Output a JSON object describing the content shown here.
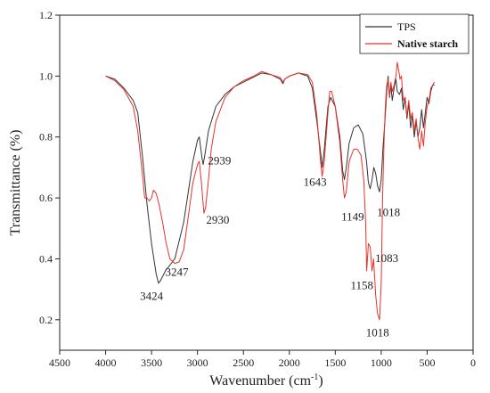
{
  "chart_data": {
    "type": "line",
    "title": "",
    "xlabel": "Wavenumber (cm",
    "xlabel_sup": "-1",
    "xlabel_close": ")",
    "ylabel": "Transmittance (%)",
    "xlim": [
      4500,
      0
    ],
    "ylim": [
      0.1,
      1.2
    ],
    "x_ticks": [
      4500,
      4000,
      3500,
      3000,
      2500,
      2000,
      1500,
      1000,
      500,
      0
    ],
    "y_ticks": [
      0.2,
      0.4,
      0.6,
      0.8,
      1.0,
      1.2
    ],
    "y_tick_labels": [
      "0.2",
      "0.4",
      "0.6",
      "0.8",
      "1.0",
      "1.2"
    ],
    "legend_position": "top-right",
    "series": [
      {
        "name": "TPS",
        "color": "#333333",
        "points": [
          [
            4000,
            1.0
          ],
          [
            3900,
            0.99
          ],
          [
            3800,
            0.96
          ],
          [
            3700,
            0.92
          ],
          [
            3650,
            0.88
          ],
          [
            3600,
            0.74
          ],
          [
            3550,
            0.58
          ],
          [
            3500,
            0.45
          ],
          [
            3450,
            0.35
          ],
          [
            3424,
            0.32
          ],
          [
            3400,
            0.33
          ],
          [
            3350,
            0.36
          ],
          [
            3247,
            0.4
          ],
          [
            3150,
            0.52
          ],
          [
            3050,
            0.72
          ],
          [
            3000,
            0.79
          ],
          [
            2980,
            0.8
          ],
          [
            2950,
            0.73
          ],
          [
            2939,
            0.71
          ],
          [
            2920,
            0.74
          ],
          [
            2880,
            0.82
          ],
          [
            2800,
            0.9
          ],
          [
            2700,
            0.94
          ],
          [
            2600,
            0.965
          ],
          [
            2500,
            0.98
          ],
          [
            2400,
            0.995
          ],
          [
            2300,
            1.01
          ],
          [
            2200,
            1.005
          ],
          [
            2100,
            0.99
          ],
          [
            2070,
            0.975
          ],
          [
            2050,
            0.99
          ],
          [
            2000,
            1.0
          ],
          [
            1900,
            1.01
          ],
          [
            1800,
            1.0
          ],
          [
            1750,
            0.96
          ],
          [
            1700,
            0.85
          ],
          [
            1660,
            0.75
          ],
          [
            1643,
            0.7
          ],
          [
            1620,
            0.76
          ],
          [
            1580,
            0.9
          ],
          [
            1550,
            0.93
          ],
          [
            1500,
            0.9
          ],
          [
            1450,
            0.8
          ],
          [
            1420,
            0.69
          ],
          [
            1400,
            0.66
          ],
          [
            1380,
            0.7
          ],
          [
            1349,
            0.78
          ],
          [
            1300,
            0.83
          ],
          [
            1250,
            0.84
          ],
          [
            1200,
            0.81
          ],
          [
            1160,
            0.72
          ],
          [
            1140,
            0.65
          ],
          [
            1120,
            0.63
          ],
          [
            1100,
            0.66
          ],
          [
            1080,
            0.7
          ],
          [
            1060,
            0.68
          ],
          [
            1040,
            0.64
          ],
          [
            1018,
            0.62
          ],
          [
            1000,
            0.66
          ],
          [
            980,
            0.77
          ],
          [
            960,
            0.85
          ],
          [
            940,
            0.95
          ],
          [
            925,
            1.0
          ],
          [
            910,
            0.93
          ],
          [
            895,
            0.97
          ],
          [
            880,
            0.92
          ],
          [
            860,
            0.96
          ],
          [
            840,
            0.99
          ],
          [
            825,
            0.95
          ],
          [
            800,
            0.94
          ],
          [
            780,
            0.96
          ],
          [
            760,
            0.89
          ],
          [
            740,
            0.93
          ],
          [
            720,
            0.86
          ],
          [
            700,
            0.91
          ],
          [
            680,
            0.83
          ],
          [
            660,
            0.87
          ],
          [
            640,
            0.8
          ],
          [
            620,
            0.85
          ],
          [
            600,
            0.8
          ],
          [
            580,
            0.83
          ],
          [
            560,
            0.89
          ],
          [
            540,
            0.83
          ],
          [
            520,
            0.88
          ],
          [
            500,
            0.93
          ],
          [
            480,
            0.91
          ],
          [
            460,
            0.95
          ],
          [
            440,
            0.97
          ],
          [
            420,
            0.97
          ]
        ]
      },
      {
        "name": "Native starch",
        "color": "#e8332a",
        "points": [
          [
            4000,
            1.0
          ],
          [
            3900,
            0.985
          ],
          [
            3800,
            0.955
          ],
          [
            3700,
            0.9
          ],
          [
            3650,
            0.82
          ],
          [
            3600,
            0.68
          ],
          [
            3575,
            0.6
          ],
          [
            3550,
            0.6
          ],
          [
            3525,
            0.59
          ],
          [
            3500,
            0.6
          ],
          [
            3480,
            0.625
          ],
          [
            3450,
            0.615
          ],
          [
            3420,
            0.58
          ],
          [
            3380,
            0.52
          ],
          [
            3340,
            0.45
          ],
          [
            3300,
            0.4
          ],
          [
            3247,
            0.385
          ],
          [
            3200,
            0.39
          ],
          [
            3150,
            0.43
          ],
          [
            3100,
            0.54
          ],
          [
            3050,
            0.65
          ],
          [
            3000,
            0.71
          ],
          [
            2980,
            0.72
          ],
          [
            2960,
            0.66
          ],
          [
            2930,
            0.55
          ],
          [
            2910,
            0.57
          ],
          [
            2880,
            0.66
          ],
          [
            2850,
            0.76
          ],
          [
            2800,
            0.85
          ],
          [
            2700,
            0.93
          ],
          [
            2600,
            0.965
          ],
          [
            2500,
            0.985
          ],
          [
            2400,
            0.998
          ],
          [
            2300,
            1.015
          ],
          [
            2200,
            1.005
          ],
          [
            2100,
            0.995
          ],
          [
            2070,
            0.98
          ],
          [
            2050,
            0.99
          ],
          [
            2000,
            1.0
          ],
          [
            1900,
            1.01
          ],
          [
            1800,
            1.005
          ],
          [
            1750,
            0.98
          ],
          [
            1700,
            0.87
          ],
          [
            1660,
            0.72
          ],
          [
            1643,
            0.67
          ],
          [
            1620,
            0.72
          ],
          [
            1580,
            0.88
          ],
          [
            1560,
            0.95
          ],
          [
            1540,
            0.95
          ],
          [
            1500,
            0.9
          ],
          [
            1450,
            0.78
          ],
          [
            1420,
            0.66
          ],
          [
            1400,
            0.6
          ],
          [
            1380,
            0.62
          ],
          [
            1349,
            0.72
          ],
          [
            1300,
            0.76
          ],
          [
            1260,
            0.76
          ],
          [
            1220,
            0.74
          ],
          [
            1190,
            0.66
          ],
          [
            1170,
            0.52
          ],
          [
            1158,
            0.36
          ],
          [
            1140,
            0.45
          ],
          [
            1120,
            0.44
          ],
          [
            1100,
            0.36
          ],
          [
            1083,
            0.4
          ],
          [
            1060,
            0.28
          ],
          [
            1040,
            0.22
          ],
          [
            1018,
            0.2
          ],
          [
            1000,
            0.32
          ],
          [
            985,
            0.6
          ],
          [
            970,
            0.78
          ],
          [
            955,
            0.9
          ],
          [
            940,
            0.97
          ],
          [
            925,
            0.99
          ],
          [
            910,
            0.93
          ],
          [
            895,
            0.98
          ],
          [
            880,
            0.95
          ],
          [
            860,
            0.97
          ],
          [
            840,
            1.0
          ],
          [
            825,
            1.045
          ],
          [
            810,
            1.02
          ],
          [
            795,
            0.99
          ],
          [
            780,
            1.0
          ],
          [
            760,
            0.92
          ],
          [
            740,
            0.93
          ],
          [
            720,
            0.87
          ],
          [
            700,
            0.92
          ],
          [
            680,
            0.86
          ],
          [
            660,
            0.88
          ],
          [
            640,
            0.82
          ],
          [
            620,
            0.86
          ],
          [
            600,
            0.8
          ],
          [
            580,
            0.76
          ],
          [
            560,
            0.82
          ],
          [
            540,
            0.77
          ],
          [
            520,
            0.85
          ],
          [
            500,
            0.9
          ],
          [
            480,
            0.92
          ],
          [
            460,
            0.96
          ],
          [
            440,
            0.97
          ],
          [
            420,
            0.98
          ]
        ]
      }
    ],
    "annotations": [
      {
        "text": "3424",
        "x": 3500,
        "y": 0.265
      },
      {
        "text": "3247",
        "x": 3225,
        "y": 0.345
      },
      {
        "text": "2939",
        "x": 2760,
        "y": 0.71
      },
      {
        "text": "2930",
        "x": 2780,
        "y": 0.515
      },
      {
        "text": "1643",
        "x": 1720,
        "y": 0.64
      },
      {
        "text": "1149",
        "x": 1310,
        "y": 0.525
      },
      {
        "text": "1018",
        "x": 920,
        "y": 0.54
      },
      {
        "text": "1083",
        "x": 940,
        "y": 0.39
      },
      {
        "text": "1158",
        "x": 1210,
        "y": 0.3
      },
      {
        "text": "1018",
        "x": 1040,
        "y": 0.145
      }
    ]
  }
}
